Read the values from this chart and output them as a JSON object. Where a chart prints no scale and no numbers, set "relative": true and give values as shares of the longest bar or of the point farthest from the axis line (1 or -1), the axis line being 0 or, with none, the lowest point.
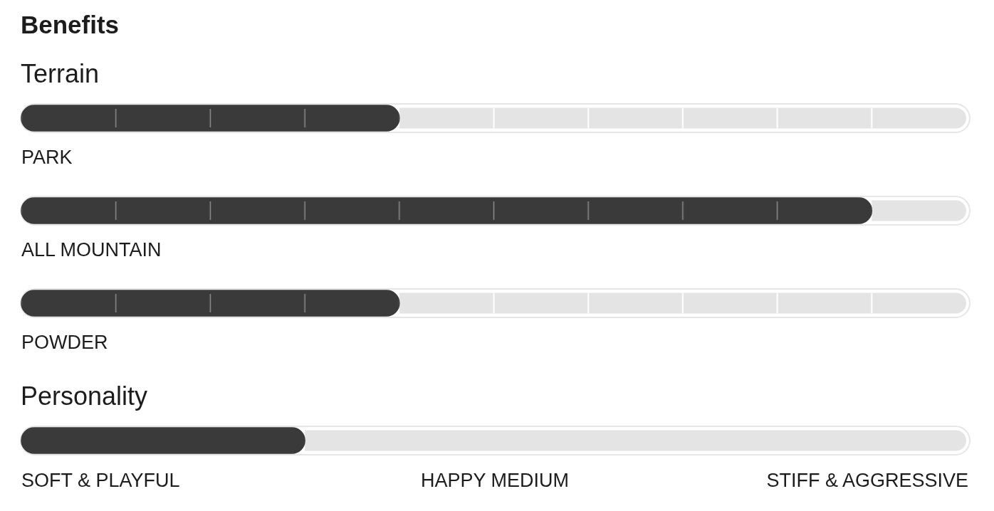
{
  "chart_data": [
    {
      "type": "bar",
      "orientation": "horizontal",
      "stacked": true,
      "relative": true,
      "title": "Benefits",
      "subtitle": "Terrain",
      "categories": [
        "PARK",
        "ALL MOUNTAIN",
        "POWDER"
      ],
      "series": [
        {
          "color": "#3a3a3a",
          "values": [
            0.4,
            0.9,
            0.4
          ]
        },
        {
          "color": "#e4e4e4",
          "values": [
            0.6,
            0.1,
            0.6
          ]
        }
      ]
    },
    {
      "type": "bar",
      "orientation": "horizontal",
      "stacked": true,
      "relative": true,
      "title": "Personality",
      "categories": [
        null
      ],
      "series": [
        {
          "color": "#3a3a3a",
          "values": [
            0.3
          ]
        },
        {
          "color": "#e4e4e4",
          "values": [
            0.7
          ]
        }
      ],
      "annotations": [
        "SOFT & PLAYFUL",
        "HAPPY MEDIUM",
        "STIFF & AGGRESSIVE"
      ]
    }
  ]
}
